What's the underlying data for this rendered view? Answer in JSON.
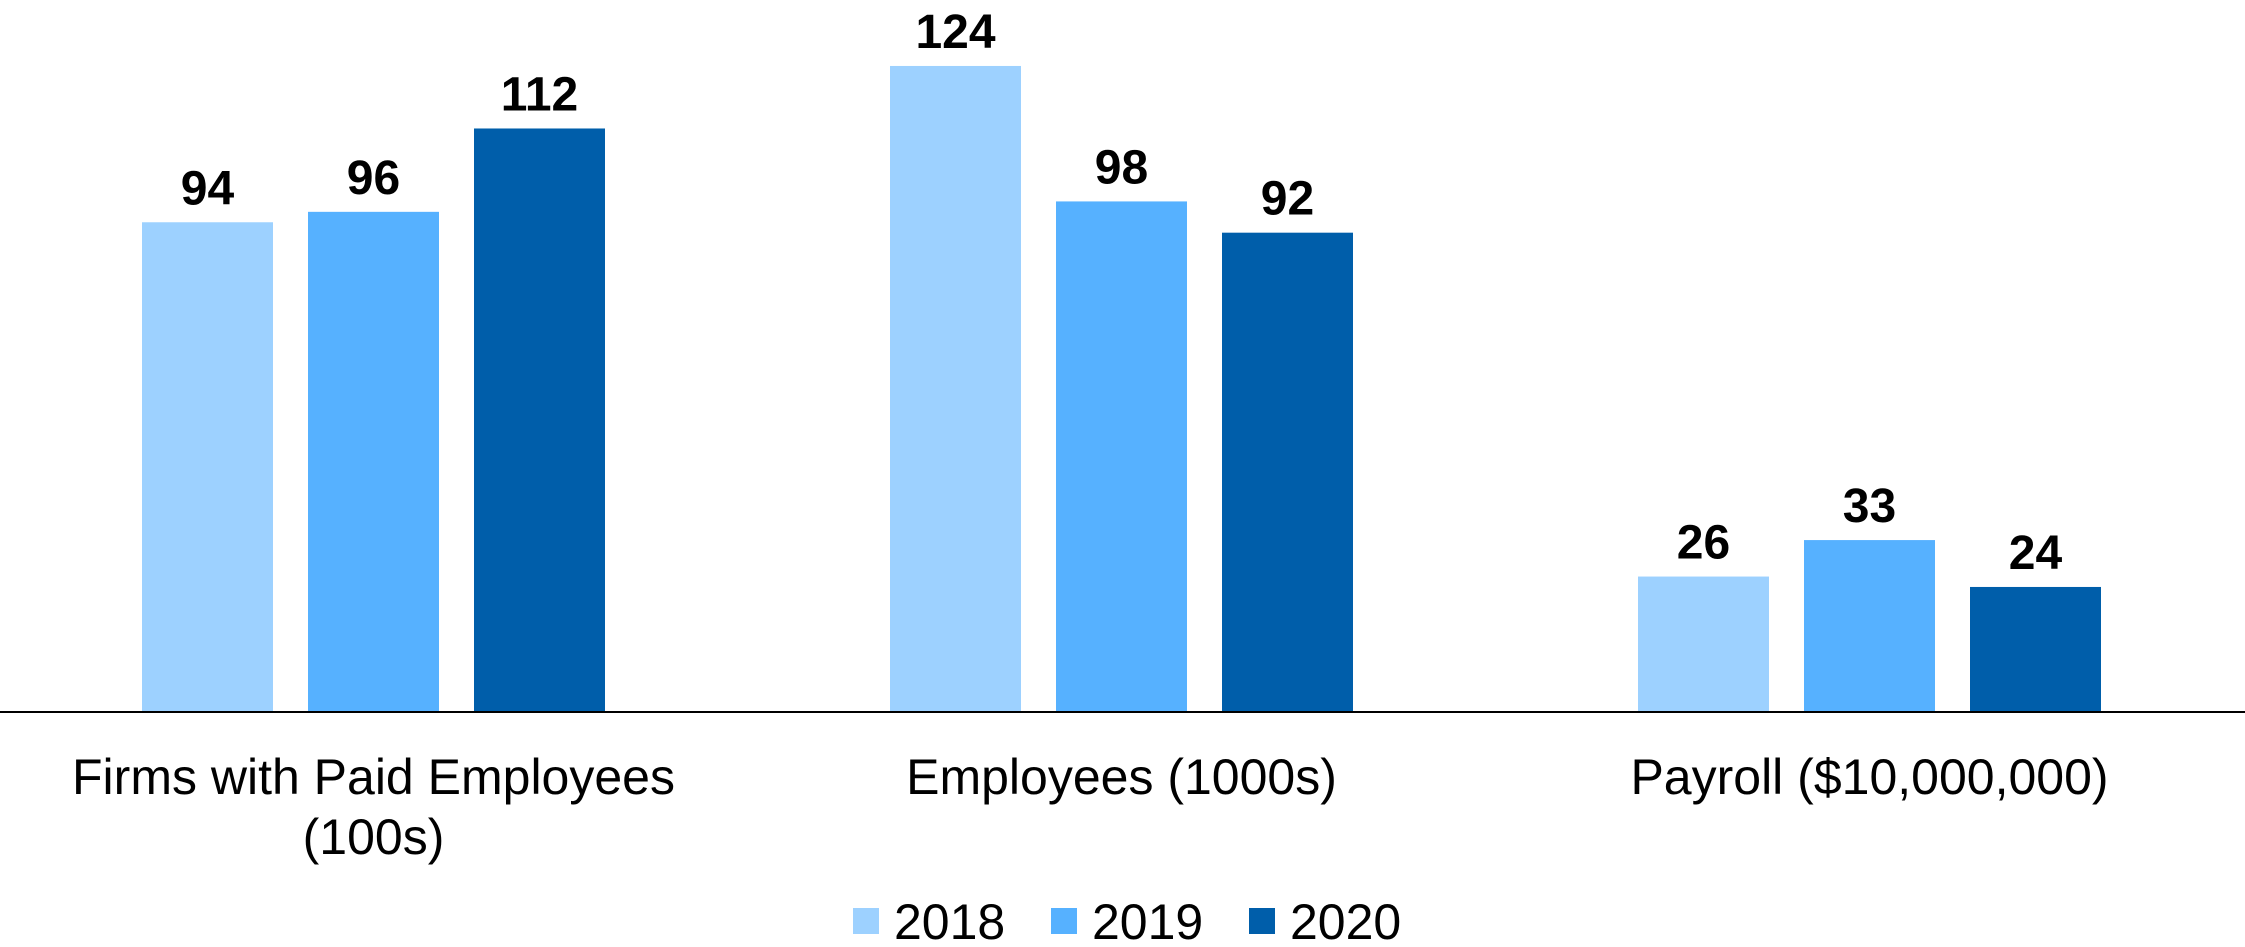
{
  "chart_data": {
    "type": "bar",
    "title": "",
    "xlabel": "",
    "ylabel": "",
    "categories": [
      [
        "Firms with Paid Employees",
        "(100s)"
      ],
      [
        "Employees (1000s)"
      ],
      [
        "Payroll ($10,000,000)"
      ]
    ],
    "series": [
      {
        "name": "2018",
        "color": "#9dd1ff",
        "values": [
          94,
          124,
          26
        ]
      },
      {
        "name": "2019",
        "color": "#56b1ff",
        "values": [
          96,
          98,
          33
        ]
      },
      {
        "name": "2020",
        "color": "#005eaa",
        "values": [
          112,
          92,
          24
        ]
      }
    ],
    "ylim": [
      0,
      130
    ],
    "grid": false,
    "data_labels": true,
    "legend_position": "bottom-center"
  }
}
